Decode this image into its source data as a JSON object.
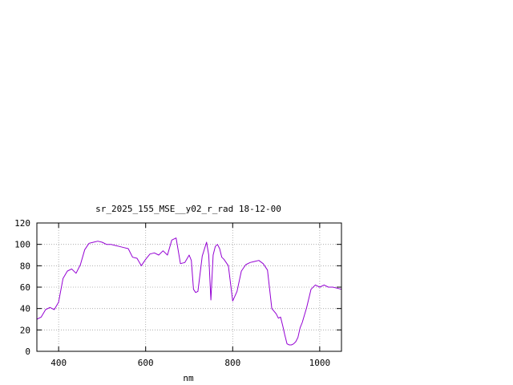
{
  "chart_data": {
    "type": "line",
    "title": "sr_2025_155_MSE__y02_r_rad 18-12-00",
    "xlabel": "nm",
    "ylabel": "",
    "xlim": [
      350,
      1050
    ],
    "ylim": [
      0,
      120
    ],
    "xticks": [
      400,
      600,
      800,
      1000
    ],
    "yticks": [
      0,
      20,
      40,
      60,
      80,
      100,
      120
    ],
    "grid": true,
    "legend": "none",
    "series": [
      {
        "color": "#9400d3",
        "x": [
          350,
          360,
          370,
          380,
          390,
          400,
          410,
          420,
          430,
          440,
          450,
          460,
          470,
          480,
          490,
          500,
          510,
          520,
          530,
          540,
          550,
          560,
          570,
          580,
          590,
          600,
          610,
          620,
          630,
          640,
          650,
          660,
          670,
          680,
          690,
          700,
          705,
          710,
          715,
          720,
          730,
          740,
          745,
          750,
          755,
          760,
          765,
          770,
          775,
          780,
          790,
          800,
          810,
          820,
          830,
          840,
          850,
          860,
          870,
          880,
          890,
          900,
          905,
          910,
          915,
          920,
          925,
          930,
          935,
          940,
          945,
          950,
          955,
          960,
          970,
          980,
          990,
          1000,
          1010,
          1020,
          1030,
          1040,
          1050
        ],
        "y": [
          30,
          32,
          39,
          41,
          39,
          46,
          68,
          75,
          77,
          73,
          81,
          95,
          101,
          102,
          103,
          102,
          100,
          100,
          99,
          98,
          97,
          96,
          88,
          87,
          80,
          86,
          91,
          92,
          90,
          94,
          90,
          104,
          106,
          82,
          83,
          90,
          85,
          58,
          55,
          56,
          89,
          102,
          90,
          48,
          90,
          98,
          100,
          96,
          88,
          86,
          80,
          47,
          56,
          75,
          81,
          83,
          84,
          85,
          82,
          76,
          40,
          35,
          31,
          32,
          24,
          15,
          7,
          6,
          6,
          7,
          9,
          13,
          22,
          27,
          41,
          58,
          62,
          60,
          62,
          60,
          60,
          59,
          58
        ]
      }
    ]
  }
}
